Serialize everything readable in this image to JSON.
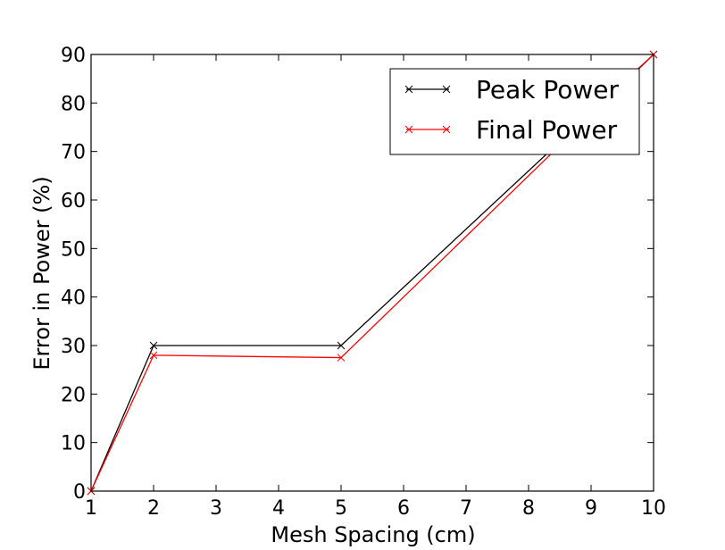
{
  "chart_data": {
    "type": "line",
    "xlabel": "Mesh Spacing (cm)",
    "ylabel": "Error in Power (%)",
    "x_categories": [
      "1",
      "2",
      "3",
      "4",
      "5",
      "6",
      "7",
      "8",
      "9",
      "10"
    ],
    "y_ticks": [
      "0",
      "10",
      "20",
      "30",
      "40",
      "50",
      "60",
      "70",
      "80",
      "90"
    ],
    "ylim": [
      0,
      90
    ],
    "grid": false,
    "legend_position": "top-right",
    "series": [
      {
        "name": "Peak Power",
        "color": "#000000",
        "marker": "x",
        "x": [
          1,
          2,
          5,
          10
        ],
        "y": [
          0,
          30,
          30,
          90
        ]
      },
      {
        "name": "Final Power",
        "color": "#ff0000",
        "marker": "x",
        "x": [
          1,
          2,
          5,
          10
        ],
        "y": [
          0,
          28,
          27.5,
          90
        ]
      }
    ]
  }
}
